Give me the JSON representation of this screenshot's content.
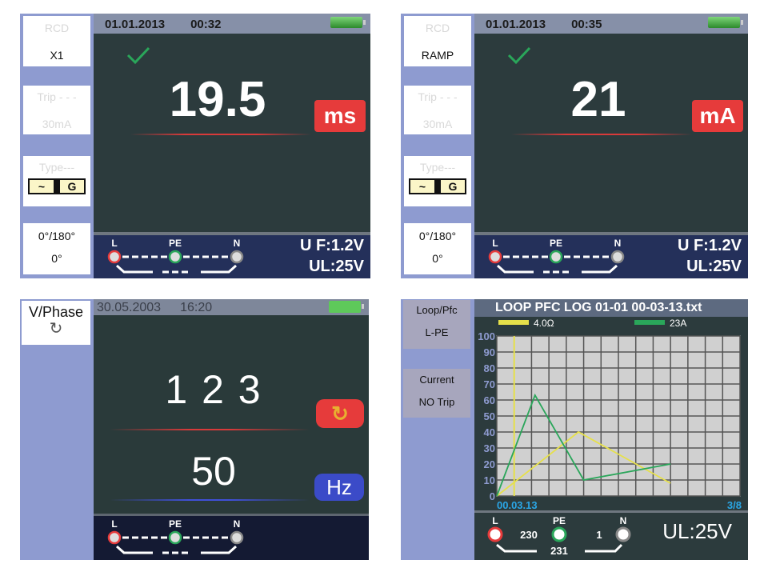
{
  "panels": [
    {
      "mode_label": "RCD",
      "mode_value": "X1",
      "trip_label": "Trip - - -",
      "trip_value": "30mA",
      "type_label": "Type---",
      "type_wave": "~",
      "type_code": "G",
      "phase_label": "0°/180°",
      "phase_value": "0°",
      "date": "01.01.2013",
      "time": "00:32",
      "value": "19.5",
      "unit": "ms",
      "terminals": [
        "L",
        "PE",
        "N"
      ],
      "uf": "U F:1.2V",
      "ul": "UL:25V",
      "status_icon": "check-icon"
    },
    {
      "mode_label": "RCD",
      "mode_value": "RAMP",
      "trip_label": "Trip - - -",
      "trip_value": "30mA",
      "type_label": "Type---",
      "type_wave": "~",
      "type_code": "G",
      "phase_label": "0°/180°",
      "phase_value": "0°",
      "date": "01.01.2013",
      "time": "00:35",
      "value": "21",
      "unit": "mA",
      "terminals": [
        "L",
        "PE",
        "N"
      ],
      "uf": "U F:1.2V",
      "ul": "UL:25V",
      "status_icon": "check-icon"
    },
    {
      "mode_label": "V/Phase",
      "date": "30.05.2003",
      "time": "16:20",
      "phase_sequence": "1 2 3",
      "frequency": "50",
      "unit": "Hz",
      "terminals": [
        "L",
        "PE",
        "N"
      ]
    },
    {
      "mode_label": "Loop/Pfc",
      "mode_value": "L-PE",
      "current_label": "Current",
      "current_value": "NO Trip",
      "title": "LOOP PFC LOG 01-01 00-03-13.txt",
      "start_time": "00.03.13",
      "page": "3/8",
      "terminals": [
        "L",
        "PE",
        "N"
      ],
      "l_pe_voltage": "230",
      "pe_value": "231",
      "pe_n_voltage": "1",
      "ul": "UL:25V"
    }
  ],
  "colors": {
    "red": "#e63b3b",
    "green": "#2aa65a",
    "yellow": "#e6e04a",
    "blue": "#3b4bc8",
    "sidebar": "#8e9bd0"
  },
  "chart_data": {
    "type": "line",
    "title": "LOOP PFC LOG 01-01 00-03-13.txt",
    "ylim": [
      0,
      100
    ],
    "xlim": [
      0,
      14
    ],
    "yticks": [
      "0",
      "10",
      "20",
      "30",
      "40",
      "50",
      "60",
      "70",
      "80",
      "90",
      "100"
    ],
    "grid": true,
    "legend": "top",
    "cursor_x": 1,
    "series": [
      {
        "name": "4.0Ω",
        "color": "#e6e04a",
        "x": [
          0,
          4.7,
          10
        ],
        "y": [
          0,
          40,
          8
        ]
      },
      {
        "name": "23A",
        "color": "#2aa65a",
        "x": [
          0,
          2.2,
          5,
          10
        ],
        "y": [
          0,
          63,
          10,
          20
        ]
      }
    ]
  }
}
